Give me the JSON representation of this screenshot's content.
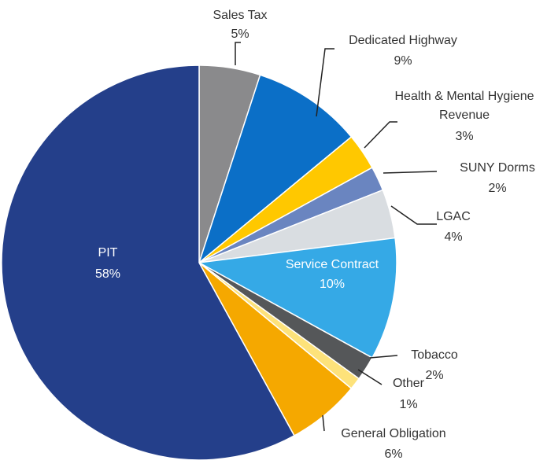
{
  "chart_data": {
    "type": "pie",
    "categories": [
      "Sales Tax",
      "Dedicated Highway",
      "Health & Mental Hygiene Revenue",
      "SUNY Dorms",
      "LGAC",
      "Service Contract",
      "Tobacco",
      "Other",
      "General Obligation",
      "PIT"
    ],
    "values": [
      5,
      9,
      3,
      2,
      4,
      10,
      2,
      1,
      6,
      58
    ],
    "value_labels": [
      "5%",
      "9%",
      "3%",
      "2%",
      "4%",
      "10%",
      "2%",
      "1%",
      "6%",
      "58%"
    ],
    "colors": [
      "#8a8a8c",
      "#0b6fc7",
      "#ffc800",
      "#6a85c0",
      "#d9dde1",
      "#35a9e6",
      "#555759",
      "#fde27a",
      "#f5a800",
      "#243f8a"
    ]
  }
}
